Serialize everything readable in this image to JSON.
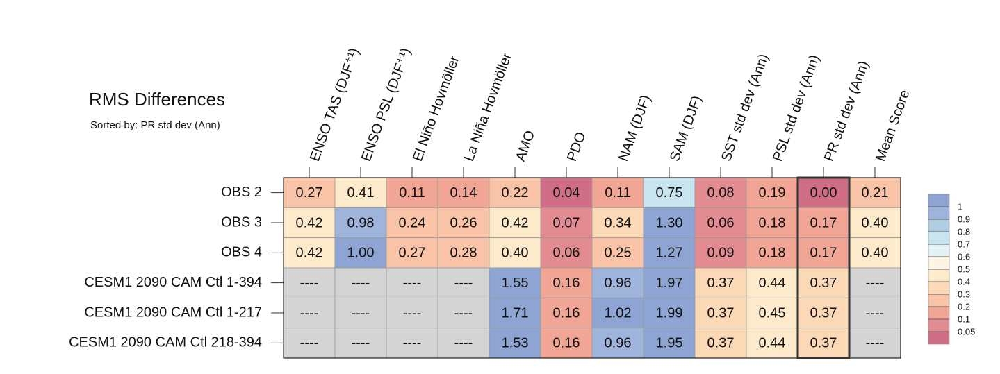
{
  "chart_data": {
    "type": "heatmap",
    "title": "RMS Differences",
    "subtitle": "Sorted by: PR std dev (Ann)",
    "columns": [
      "ENSO TAS (DJF⁺¹)",
      "ENSO PSL (DJF⁺¹)",
      "El Niño Hovmöller",
      "La Niña Hovmöller",
      "AMO",
      "PDO",
      "NAM (DJF)",
      "SAM (DJF)",
      "SST std dev (Ann)",
      "PSL std dev (Ann)",
      "PR std dev (Ann)",
      "Mean Score"
    ],
    "rows": [
      "OBS 2",
      "OBS 3",
      "OBS 4",
      "CESM1 2090 CAM Ctl 1-394",
      "CESM1 2090 CAM Ctl 1-217",
      "CESM1 2090 CAM Ctl 218-394"
    ],
    "values": [
      [
        0.27,
        0.41,
        0.11,
        0.14,
        0.22,
        0.04,
        0.11,
        0.75,
        0.08,
        0.19,
        0,
        0.21
      ],
      [
        0.42,
        0.98,
        0.24,
        0.26,
        0.42,
        0.07,
        0.34,
        1.3,
        0.06,
        0.18,
        0.17,
        0.4
      ],
      [
        0.42,
        1,
        0.27,
        0.28,
        0.4,
        0.06,
        0.25,
        1.27,
        0.09,
        0.18,
        0.17,
        0.4
      ],
      [
        null,
        null,
        null,
        null,
        1.55,
        0.16,
        0.96,
        1.97,
        0.37,
        0.44,
        0.37,
        null
      ],
      [
        null,
        null,
        null,
        null,
        1.71,
        0.16,
        1.02,
        1.99,
        0.37,
        0.45,
        0.37,
        null
      ],
      [
        null,
        null,
        null,
        null,
        1.53,
        0.16,
        0.96,
        1.95,
        0.37,
        0.44,
        0.37,
        null
      ]
    ],
    "value_labels": [
      [
        "0.27",
        "0.41",
        "0.11",
        "0.14",
        "0.22",
        "0.04",
        "0.11",
        "0.75",
        "0.08",
        "0.19",
        "0.00",
        "0.21"
      ],
      [
        "0.42",
        "0.98",
        "0.24",
        "0.26",
        "0.42",
        "0.07",
        "0.34",
        "1.30",
        "0.06",
        "0.18",
        "0.17",
        "0.40"
      ],
      [
        "0.42",
        "1.00",
        "0.27",
        "0.28",
        "0.40",
        "0.06",
        "0.25",
        "1.27",
        "0.09",
        "0.18",
        "0.17",
        "0.40"
      ],
      [
        "----",
        "----",
        "----",
        "----",
        "1.55",
        "0.16",
        "0.96",
        "1.97",
        "0.37",
        "0.44",
        "0.37",
        "----"
      ],
      [
        "----",
        "----",
        "----",
        "----",
        "1.71",
        "0.16",
        "1.02",
        "1.99",
        "0.37",
        "0.45",
        "0.37",
        "----"
      ],
      [
        "----",
        "----",
        "----",
        "----",
        "1.53",
        "0.16",
        "0.96",
        "1.95",
        "0.37",
        "0.44",
        "0.37",
        "----"
      ]
    ],
    "highlight_column": "PR std dev (Ann)",
    "colorbar_ticks": [
      0.05,
      0.1,
      0.2,
      0.3,
      0.4,
      0.5,
      0.6,
      0.7,
      0.8,
      0.9,
      1
    ],
    "colors": [
      "#cf6e84",
      "#e28b91",
      "#f0a595",
      "#f8c3a6",
      "#fcd9b6",
      "#fdeacb",
      "#fbf5e2",
      "#e2f1f4",
      "#c8e5ef",
      "#b0cde3",
      "#9fb4da",
      "#8ea5d3"
    ],
    "missing_color": "#d4d4d4"
  }
}
